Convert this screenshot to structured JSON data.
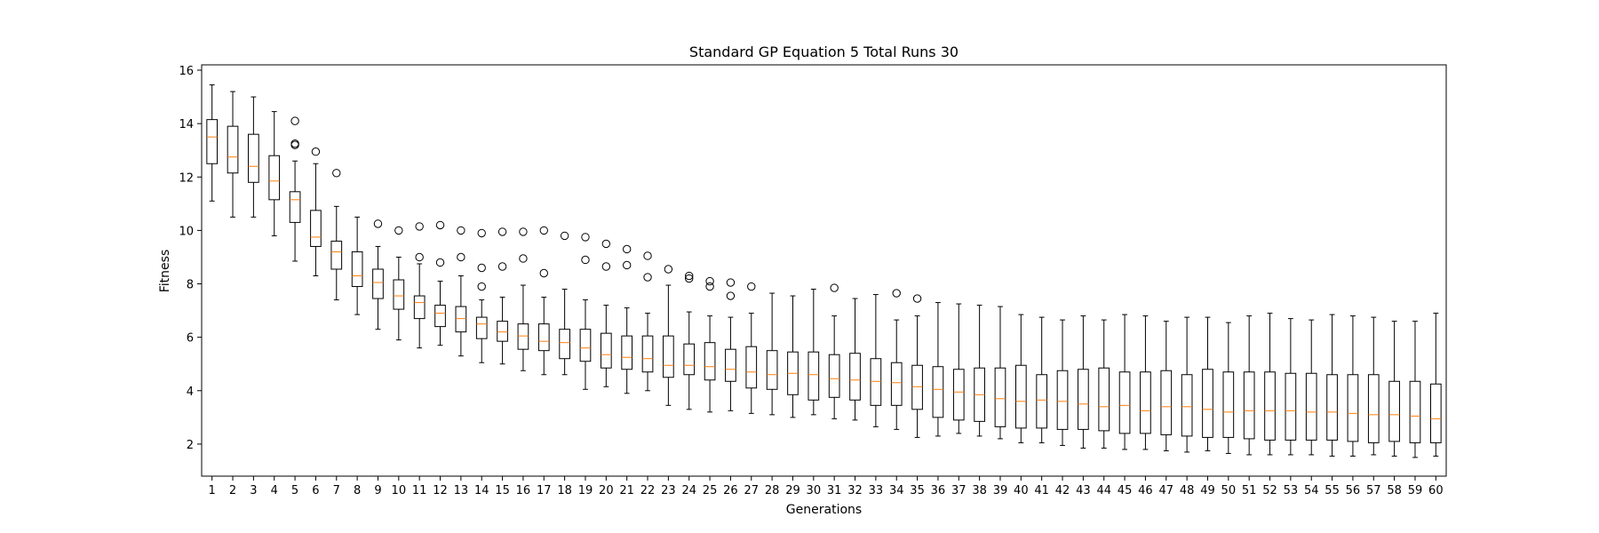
{
  "chart_data": {
    "type": "boxplot",
    "title": "Standard GP Equation 5 Total Runs 30",
    "xlabel": "Generations",
    "ylabel": "Fitness",
    "ylim": [
      0.8,
      16.2
    ],
    "yticks": [
      2,
      4,
      6,
      8,
      10,
      12,
      14,
      16
    ],
    "grid": false,
    "colors": {
      "box": "#000000",
      "median": "#ff7f0e",
      "background": "#ffffff"
    },
    "boxes": [
      {
        "x": 1,
        "whislo": 11.1,
        "q1": 12.5,
        "med": 13.5,
        "q3": 14.15,
        "whishi": 15.45,
        "fliers": []
      },
      {
        "x": 2,
        "whislo": 10.5,
        "q1": 12.15,
        "med": 12.75,
        "q3": 13.9,
        "whishi": 15.2,
        "fliers": []
      },
      {
        "x": 3,
        "whislo": 10.5,
        "q1": 11.8,
        "med": 12.4,
        "q3": 13.6,
        "whishi": 15.0,
        "fliers": []
      },
      {
        "x": 4,
        "whislo": 9.8,
        "q1": 11.15,
        "med": 11.85,
        "q3": 12.8,
        "whishi": 14.45,
        "fliers": []
      },
      {
        "x": 5,
        "whislo": 8.85,
        "q1": 10.3,
        "med": 11.15,
        "q3": 11.45,
        "whishi": 12.6,
        "fliers": [
          14.1,
          13.25,
          13.2
        ]
      },
      {
        "x": 6,
        "whislo": 8.3,
        "q1": 9.4,
        "med": 9.75,
        "q3": 10.75,
        "whishi": 12.5,
        "fliers": [
          12.95
        ]
      },
      {
        "x": 7,
        "whislo": 7.4,
        "q1": 8.55,
        "med": 9.2,
        "q3": 9.6,
        "whishi": 10.9,
        "fliers": [
          12.15
        ]
      },
      {
        "x": 8,
        "whislo": 6.85,
        "q1": 7.9,
        "med": 8.3,
        "q3": 9.2,
        "whishi": 10.5,
        "fliers": []
      },
      {
        "x": 9,
        "whislo": 6.3,
        "q1": 7.45,
        "med": 8.05,
        "q3": 8.55,
        "whishi": 9.4,
        "fliers": [
          10.25
        ]
      },
      {
        "x": 10,
        "whislo": 5.9,
        "q1": 7.05,
        "med": 7.55,
        "q3": 8.15,
        "whishi": 9.0,
        "fliers": [
          10.0
        ]
      },
      {
        "x": 11,
        "whislo": 5.6,
        "q1": 6.7,
        "med": 7.3,
        "q3": 7.55,
        "whishi": 8.75,
        "fliers": [
          10.15,
          9.0
        ]
      },
      {
        "x": 12,
        "whislo": 5.7,
        "q1": 6.4,
        "med": 6.9,
        "q3": 7.2,
        "whishi": 8.1,
        "fliers": [
          10.2,
          8.8
        ]
      },
      {
        "x": 13,
        "whislo": 5.3,
        "q1": 6.2,
        "med": 6.7,
        "q3": 7.15,
        "whishi": 8.3,
        "fliers": [
          10.0,
          9.0
        ]
      },
      {
        "x": 14,
        "whislo": 5.05,
        "q1": 5.95,
        "med": 6.5,
        "q3": 6.75,
        "whishi": 7.4,
        "fliers": [
          9.9,
          8.6,
          7.9
        ]
      },
      {
        "x": 15,
        "whislo": 5.0,
        "q1": 5.85,
        "med": 6.2,
        "q3": 6.6,
        "whishi": 7.5,
        "fliers": [
          9.95,
          8.65
        ]
      },
      {
        "x": 16,
        "whislo": 4.75,
        "q1": 5.55,
        "med": 6.05,
        "q3": 6.5,
        "whishi": 7.95,
        "fliers": [
          9.95,
          8.95
        ]
      },
      {
        "x": 17,
        "whislo": 4.6,
        "q1": 5.5,
        "med": 5.85,
        "q3": 6.5,
        "whishi": 7.5,
        "fliers": [
          10.0,
          8.4
        ]
      },
      {
        "x": 18,
        "whislo": 4.6,
        "q1": 5.2,
        "med": 5.8,
        "q3": 6.3,
        "whishi": 7.8,
        "fliers": [
          9.8
        ]
      },
      {
        "x": 19,
        "whislo": 4.05,
        "q1": 5.1,
        "med": 5.6,
        "q3": 6.3,
        "whishi": 7.4,
        "fliers": [
          9.75,
          8.9
        ]
      },
      {
        "x": 20,
        "whislo": 4.15,
        "q1": 4.85,
        "med": 5.35,
        "q3": 6.15,
        "whishi": 7.2,
        "fliers": [
          9.5,
          8.65
        ]
      },
      {
        "x": 21,
        "whislo": 3.9,
        "q1": 4.8,
        "med": 5.25,
        "q3": 6.05,
        "whishi": 7.1,
        "fliers": [
          9.3,
          8.7
        ]
      },
      {
        "x": 22,
        "whislo": 4.0,
        "q1": 4.7,
        "med": 5.2,
        "q3": 6.05,
        "whishi": 6.9,
        "fliers": [
          9.05,
          8.25
        ]
      },
      {
        "x": 23,
        "whislo": 3.45,
        "q1": 4.5,
        "med": 4.95,
        "q3": 6.05,
        "whishi": 7.95,
        "fliers": [
          8.55
        ]
      },
      {
        "x": 24,
        "whislo": 3.3,
        "q1": 4.6,
        "med": 4.95,
        "q3": 5.75,
        "whishi": 6.95,
        "fliers": [
          8.3,
          8.2
        ]
      },
      {
        "x": 25,
        "whislo": 3.2,
        "q1": 4.4,
        "med": 4.9,
        "q3": 5.8,
        "whishi": 6.8,
        "fliers": [
          8.1,
          7.9
        ]
      },
      {
        "x": 26,
        "whislo": 3.25,
        "q1": 4.35,
        "med": 4.8,
        "q3": 5.55,
        "whishi": 6.75,
        "fliers": [
          8.05,
          7.55
        ]
      },
      {
        "x": 27,
        "whislo": 3.15,
        "q1": 4.1,
        "med": 4.7,
        "q3": 5.65,
        "whishi": 6.9,
        "fliers": [
          7.9
        ]
      },
      {
        "x": 28,
        "whislo": 3.1,
        "q1": 4.05,
        "med": 4.6,
        "q3": 5.5,
        "whishi": 7.65,
        "fliers": []
      },
      {
        "x": 29,
        "whislo": 3.0,
        "q1": 3.85,
        "med": 4.65,
        "q3": 5.45,
        "whishi": 7.55,
        "fliers": []
      },
      {
        "x": 30,
        "whislo": 3.1,
        "q1": 3.65,
        "med": 4.6,
        "q3": 5.45,
        "whishi": 7.8,
        "fliers": []
      },
      {
        "x": 31,
        "whislo": 2.95,
        "q1": 3.75,
        "med": 4.45,
        "q3": 5.35,
        "whishi": 6.8,
        "fliers": [
          7.85
        ]
      },
      {
        "x": 32,
        "whislo": 2.9,
        "q1": 3.65,
        "med": 4.4,
        "q3": 5.4,
        "whishi": 7.45,
        "fliers": []
      },
      {
        "x": 33,
        "whislo": 2.65,
        "q1": 3.45,
        "med": 4.35,
        "q3": 5.2,
        "whishi": 7.6,
        "fliers": []
      },
      {
        "x": 34,
        "whislo": 2.55,
        "q1": 3.45,
        "med": 4.3,
        "q3": 5.05,
        "whishi": 6.65,
        "fliers": [
          7.65
        ]
      },
      {
        "x": 35,
        "whislo": 2.25,
        "q1": 3.3,
        "med": 4.15,
        "q3": 4.95,
        "whishi": 6.8,
        "fliers": [
          7.45
        ]
      },
      {
        "x": 36,
        "whislo": 2.3,
        "q1": 3.0,
        "med": 4.05,
        "q3": 4.9,
        "whishi": 7.3,
        "fliers": []
      },
      {
        "x": 37,
        "whislo": 2.4,
        "q1": 2.9,
        "med": 3.95,
        "q3": 4.8,
        "whishi": 7.25,
        "fliers": []
      },
      {
        "x": 38,
        "whislo": 2.3,
        "q1": 2.85,
        "med": 3.85,
        "q3": 4.85,
        "whishi": 7.2,
        "fliers": []
      },
      {
        "x": 39,
        "whislo": 2.2,
        "q1": 2.65,
        "med": 3.7,
        "q3": 4.85,
        "whishi": 7.15,
        "fliers": []
      },
      {
        "x": 40,
        "whislo": 2.05,
        "q1": 2.6,
        "med": 3.6,
        "q3": 4.95,
        "whishi": 6.85,
        "fliers": []
      },
      {
        "x": 41,
        "whislo": 2.05,
        "q1": 2.6,
        "med": 3.65,
        "q3": 4.6,
        "whishi": 6.75,
        "fliers": []
      },
      {
        "x": 42,
        "whislo": 1.95,
        "q1": 2.55,
        "med": 3.6,
        "q3": 4.75,
        "whishi": 6.65,
        "fliers": []
      },
      {
        "x": 43,
        "whislo": 1.85,
        "q1": 2.55,
        "med": 3.5,
        "q3": 4.8,
        "whishi": 6.8,
        "fliers": []
      },
      {
        "x": 44,
        "whislo": 1.85,
        "q1": 2.5,
        "med": 3.4,
        "q3": 4.85,
        "whishi": 6.65,
        "fliers": []
      },
      {
        "x": 45,
        "whislo": 1.8,
        "q1": 2.4,
        "med": 3.45,
        "q3": 4.7,
        "whishi": 6.85,
        "fliers": []
      },
      {
        "x": 46,
        "whislo": 1.8,
        "q1": 2.4,
        "med": 3.25,
        "q3": 4.7,
        "whishi": 6.8,
        "fliers": []
      },
      {
        "x": 47,
        "whislo": 1.75,
        "q1": 2.35,
        "med": 3.4,
        "q3": 4.75,
        "whishi": 6.6,
        "fliers": []
      },
      {
        "x": 48,
        "whislo": 1.7,
        "q1": 2.3,
        "med": 3.4,
        "q3": 4.6,
        "whishi": 6.75,
        "fliers": []
      },
      {
        "x": 49,
        "whislo": 1.75,
        "q1": 2.25,
        "med": 3.3,
        "q3": 4.8,
        "whishi": 6.75,
        "fliers": []
      },
      {
        "x": 50,
        "whislo": 1.65,
        "q1": 2.25,
        "med": 3.2,
        "q3": 4.7,
        "whishi": 6.55,
        "fliers": []
      },
      {
        "x": 51,
        "whislo": 1.6,
        "q1": 2.2,
        "med": 3.25,
        "q3": 4.7,
        "whishi": 6.8,
        "fliers": []
      },
      {
        "x": 52,
        "whislo": 1.6,
        "q1": 2.15,
        "med": 3.25,
        "q3": 4.7,
        "whishi": 6.9,
        "fliers": []
      },
      {
        "x": 53,
        "whislo": 1.6,
        "q1": 2.15,
        "med": 3.25,
        "q3": 4.65,
        "whishi": 6.7,
        "fliers": []
      },
      {
        "x": 54,
        "whislo": 1.6,
        "q1": 2.15,
        "med": 3.2,
        "q3": 4.65,
        "whishi": 6.65,
        "fliers": []
      },
      {
        "x": 55,
        "whislo": 1.55,
        "q1": 2.15,
        "med": 3.2,
        "q3": 4.6,
        "whishi": 6.85,
        "fliers": []
      },
      {
        "x": 56,
        "whislo": 1.55,
        "q1": 2.1,
        "med": 3.15,
        "q3": 4.6,
        "whishi": 6.8,
        "fliers": []
      },
      {
        "x": 57,
        "whislo": 1.6,
        "q1": 2.05,
        "med": 3.1,
        "q3": 4.6,
        "whishi": 6.75,
        "fliers": []
      },
      {
        "x": 58,
        "whislo": 1.55,
        "q1": 2.1,
        "med": 3.1,
        "q3": 4.35,
        "whishi": 6.6,
        "fliers": []
      },
      {
        "x": 59,
        "whislo": 1.5,
        "q1": 2.05,
        "med": 3.05,
        "q3": 4.35,
        "whishi": 6.6,
        "fliers": []
      },
      {
        "x": 60,
        "whislo": 1.55,
        "q1": 2.05,
        "med": 2.95,
        "q3": 4.25,
        "whishi": 6.9,
        "fliers": []
      }
    ]
  }
}
